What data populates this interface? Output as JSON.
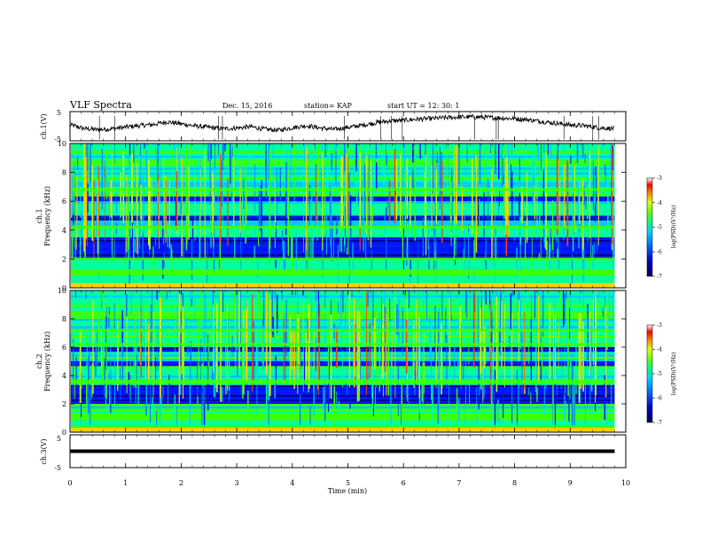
{
  "header": {
    "title": "VLF Spectra",
    "date": "Dec. 15, 2016",
    "station": "station= KAP",
    "start_ut": "start  UT =   12: 30: 1"
  },
  "chart_data": [
    {
      "type": "line",
      "panel": "ch1-voltage",
      "ylabel": "ch.1(V)",
      "ylim": [
        -5,
        5
      ],
      "yticks": [
        "5",
        "-5"
      ],
      "series": [
        {
          "x": [
            0,
            0.25,
            0.5,
            0.75,
            1,
            1.25,
            1.5,
            1.75,
            2,
            2.25,
            2.5,
            2.75,
            3,
            3.25,
            3.5,
            3.75,
            4,
            4.25,
            4.5,
            4.75,
            5,
            5.25,
            5.5,
            5.75,
            6,
            6.25,
            6.5,
            6.75,
            7,
            7.25,
            7.5,
            7.75,
            8,
            8.25,
            8.5,
            8.75,
            9,
            9.25,
            9.5,
            9.75
          ],
          "y": [
            0.5,
            -0.8,
            -1.2,
            -0.9,
            -0.3,
            0.2,
            0.6,
            1.5,
            0.8,
            0.1,
            -0.4,
            -0.9,
            -0.6,
            -0.2,
            -1.0,
            -1.4,
            -0.5,
            0.2,
            -0.6,
            -1.1,
            -0.4,
            0.3,
            1.2,
            1.8,
            2.0,
            2.4,
            2.6,
            2.9,
            3.1,
            3.2,
            3.0,
            2.8,
            2.6,
            2.2,
            1.6,
            1.0,
            0.4,
            0.2,
            -0.5,
            -0.8
          ]
        }
      ]
    },
    {
      "type": "heatmap",
      "panel": "ch1-spectrogram",
      "ylabel": "Frequency (kHz)",
      "channel_label": "ch.1",
      "ylim": [
        0,
        10
      ],
      "yticks": [
        "0",
        "2",
        "4",
        "6",
        "8",
        "10"
      ],
      "colorbar": {
        "label": "log(PSD)(V²/Hz)",
        "ticks": [
          "-3",
          "-4",
          "-5",
          "-6",
          "-7"
        ],
        "range": [
          -7,
          -3
        ]
      },
      "dark_bands_khz": [
        [
          2.0,
          3.6
        ],
        [
          4.6,
          5.1
        ],
        [
          6.0,
          6.4
        ]
      ],
      "bright_bands_khz": [
        [
          0.9,
          1.3
        ],
        [
          1.9,
          2.1
        ],
        [
          4.1,
          4.3
        ],
        [
          6.7,
          6.9
        ]
      ]
    },
    {
      "type": "heatmap",
      "panel": "ch2-spectrogram",
      "ylabel": "Frequency (kHz)",
      "channel_label": "ch.2",
      "ylim": [
        0,
        10
      ],
      "yticks": [
        "0",
        "2",
        "4",
        "6",
        "8",
        "10"
      ],
      "colorbar": {
        "label": "log(PSD)(V²/Hz)",
        "ticks": [
          "-3",
          "-4",
          "-5",
          "-6",
          "-7"
        ],
        "range": [
          -7,
          -3
        ]
      },
      "dark_bands_khz": [
        [
          1.9,
          3.4
        ],
        [
          4.6,
          5.0
        ],
        [
          5.6,
          6.0
        ]
      ],
      "bright_bands_khz": [
        [
          0.3,
          0.5
        ],
        [
          3.4,
          3.7
        ],
        [
          6.1,
          6.3
        ],
        [
          7.1,
          7.3
        ]
      ]
    },
    {
      "type": "line",
      "panel": "ch3-voltage",
      "ylabel": "ch.3(V)",
      "ylim": [
        -5,
        5
      ],
      "yticks": [
        "5",
        "-5"
      ],
      "series": [
        {
          "x": [
            0,
            9.8
          ],
          "y": [
            0,
            0
          ]
        }
      ]
    }
  ],
  "x_axis": {
    "label": "Time  (min)",
    "ticks": [
      "0",
      "1",
      "2",
      "3",
      "4",
      "5",
      "6",
      "7",
      "8",
      "9",
      "10"
    ],
    "xlim": [
      0,
      10
    ]
  },
  "colors": {
    "colormap": [
      "#000040",
      "#0000a0",
      "#0010ff",
      "#0070ff",
      "#00c8ff",
      "#00ffa0",
      "#40ff00",
      "#c0ff00",
      "#ffd000",
      "#ff4000",
      "#c00000"
    ],
    "trace": "#000000"
  }
}
